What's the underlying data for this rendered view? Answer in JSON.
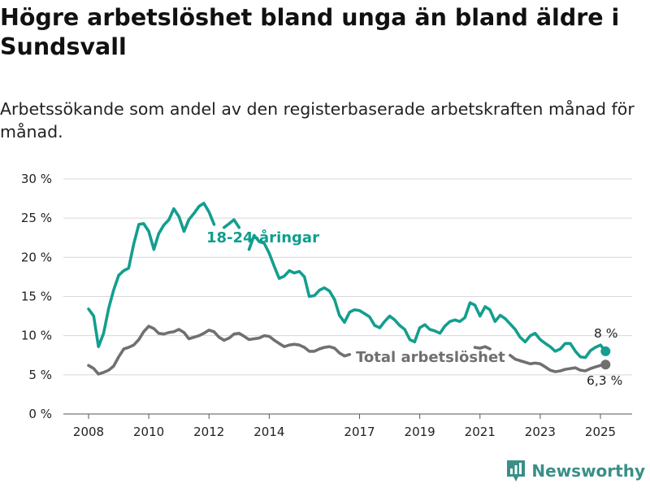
{
  "title": "Högre arbetslöshet bland unga än bland äldre i Sundsvall",
  "subtitle": "Arbetssökande som andel av den registerbaserade arbetskraften månad för månad.",
  "brand": {
    "name": "Newsworthy",
    "icon": "bar-chart-logo-icon"
  },
  "colors": {
    "youth": "#139e8f",
    "total": "#707070",
    "grid": "#d8d8d8",
    "brand": "#3a8f88"
  },
  "chart_data": {
    "type": "line",
    "title": "Högre arbetslöshet bland unga än bland äldre i Sundsvall",
    "xlabel": "",
    "ylabel": "",
    "x_ticks": [
      2008,
      2010,
      2012,
      2014,
      2017,
      2019,
      2021,
      2023,
      2025
    ],
    "y_ticks": [
      0,
      5,
      10,
      15,
      20,
      25,
      30
    ],
    "y_tick_labels": [
      "0 %",
      "5 %",
      "10 %",
      "15 %",
      "20 %",
      "25 %",
      "30 %"
    ],
    "ylim": [
      0,
      30
    ],
    "grid": true,
    "series": [
      {
        "name": "18-24-åringar",
        "color": "#139e8f",
        "end_label": "8 %",
        "points": [
          [
            2008.0,
            13.4
          ],
          [
            2008.17,
            12.5
          ],
          [
            2008.33,
            8.6
          ],
          [
            2008.5,
            10.3
          ],
          [
            2008.67,
            13.5
          ],
          [
            2008.83,
            15.8
          ],
          [
            2009.0,
            17.7
          ],
          [
            2009.17,
            18.3
          ],
          [
            2009.33,
            18.6
          ],
          [
            2009.5,
            21.7
          ],
          [
            2009.67,
            24.2
          ],
          [
            2009.83,
            24.3
          ],
          [
            2010.0,
            23.3
          ],
          [
            2010.17,
            21.0
          ],
          [
            2010.33,
            23.0
          ],
          [
            2010.5,
            24.1
          ],
          [
            2010.67,
            24.8
          ],
          [
            2010.83,
            26.2
          ],
          [
            2011.0,
            25.2
          ],
          [
            2011.17,
            23.3
          ],
          [
            2011.33,
            24.8
          ],
          [
            2011.5,
            25.6
          ],
          [
            2011.67,
            26.5
          ],
          [
            2011.83,
            26.9
          ],
          [
            2012.0,
            25.8
          ],
          [
            2012.17,
            24.2
          ],
          null,
          [
            2012.5,
            23.8
          ],
          [
            2012.67,
            24.3
          ],
          [
            2012.83,
            24.8
          ],
          [
            2013.0,
            23.8
          ],
          null,
          [
            2013.33,
            21.0
          ],
          [
            2013.5,
            22.8
          ],
          [
            2013.67,
            22.0
          ],
          [
            2013.83,
            21.8
          ],
          [
            2014.0,
            20.5
          ],
          [
            2014.17,
            18.8
          ],
          [
            2014.33,
            17.3
          ],
          [
            2014.5,
            17.6
          ],
          [
            2014.67,
            18.3
          ],
          [
            2014.83,
            18.0
          ],
          [
            2015.0,
            18.2
          ],
          [
            2015.17,
            17.5
          ],
          [
            2015.33,
            15.0
          ],
          [
            2015.5,
            15.1
          ],
          [
            2015.67,
            15.8
          ],
          [
            2015.83,
            16.1
          ],
          [
            2016.0,
            15.7
          ],
          [
            2016.17,
            14.6
          ],
          [
            2016.33,
            12.6
          ],
          [
            2016.5,
            11.7
          ],
          [
            2016.67,
            13.0
          ],
          [
            2016.83,
            13.3
          ],
          [
            2017.0,
            13.2
          ],
          [
            2017.17,
            12.8
          ],
          [
            2017.33,
            12.4
          ],
          [
            2017.5,
            11.3
          ],
          [
            2017.67,
            11.0
          ],
          [
            2017.83,
            11.8
          ],
          [
            2018.0,
            12.5
          ],
          [
            2018.17,
            12.0
          ],
          [
            2018.33,
            11.3
          ],
          [
            2018.5,
            10.8
          ],
          [
            2018.67,
            9.5
          ],
          [
            2018.83,
            9.2
          ],
          [
            2019.0,
            11.0
          ],
          [
            2019.17,
            11.4
          ],
          [
            2019.33,
            10.8
          ],
          [
            2019.5,
            10.6
          ],
          [
            2019.67,
            10.3
          ],
          [
            2019.83,
            11.2
          ],
          [
            2020.0,
            11.8
          ],
          [
            2020.17,
            12.0
          ],
          [
            2020.33,
            11.8
          ],
          [
            2020.5,
            12.3
          ],
          [
            2020.67,
            14.2
          ],
          [
            2020.83,
            13.9
          ],
          [
            2021.0,
            12.5
          ],
          [
            2021.17,
            13.7
          ],
          [
            2021.33,
            13.3
          ],
          [
            2021.5,
            11.8
          ],
          [
            2021.67,
            12.6
          ],
          [
            2021.83,
            12.2
          ],
          [
            2022.0,
            11.5
          ],
          [
            2022.17,
            10.8
          ],
          [
            2022.33,
            9.8
          ],
          [
            2022.5,
            9.2
          ],
          [
            2022.67,
            10.0
          ],
          [
            2022.83,
            10.3
          ],
          [
            2023.0,
            9.5
          ],
          [
            2023.17,
            9.0
          ],
          [
            2023.33,
            8.6
          ],
          [
            2023.5,
            8.0
          ],
          [
            2023.67,
            8.3
          ],
          [
            2023.83,
            9.0
          ],
          [
            2024.0,
            9.0
          ],
          [
            2024.17,
            8.0
          ],
          [
            2024.33,
            7.3
          ],
          [
            2024.5,
            7.2
          ],
          [
            2024.67,
            8.1
          ],
          [
            2024.83,
            8.5
          ],
          [
            2025.0,
            8.8
          ],
          [
            2025.17,
            8.0
          ]
        ]
      },
      {
        "name": "Total arbetslöshet",
        "color": "#707070",
        "end_label": "6,3 %",
        "points": [
          [
            2008.0,
            6.2
          ],
          [
            2008.17,
            5.8
          ],
          [
            2008.33,
            5.1
          ],
          [
            2008.5,
            5.3
          ],
          [
            2008.67,
            5.6
          ],
          [
            2008.83,
            6.1
          ],
          [
            2009.0,
            7.3
          ],
          [
            2009.17,
            8.3
          ],
          [
            2009.33,
            8.5
          ],
          [
            2009.5,
            8.8
          ],
          [
            2009.67,
            9.5
          ],
          [
            2009.83,
            10.5
          ],
          [
            2010.0,
            11.2
          ],
          [
            2010.17,
            10.9
          ],
          [
            2010.33,
            10.3
          ],
          [
            2010.5,
            10.2
          ],
          [
            2010.67,
            10.4
          ],
          [
            2010.83,
            10.5
          ],
          [
            2011.0,
            10.8
          ],
          [
            2011.17,
            10.4
          ],
          [
            2011.33,
            9.6
          ],
          [
            2011.5,
            9.8
          ],
          [
            2011.67,
            10.0
          ],
          [
            2011.83,
            10.3
          ],
          [
            2012.0,
            10.7
          ],
          [
            2012.17,
            10.5
          ],
          [
            2012.33,
            9.8
          ],
          [
            2012.5,
            9.4
          ],
          [
            2012.67,
            9.7
          ],
          [
            2012.83,
            10.2
          ],
          [
            2013.0,
            10.3
          ],
          [
            2013.17,
            9.9
          ],
          [
            2013.33,
            9.5
          ],
          [
            2013.5,
            9.6
          ],
          [
            2013.67,
            9.7
          ],
          [
            2013.83,
            10.0
          ],
          [
            2014.0,
            9.9
          ],
          [
            2014.17,
            9.4
          ],
          [
            2014.33,
            9.0
          ],
          [
            2014.5,
            8.6
          ],
          [
            2014.67,
            8.8
          ],
          [
            2014.83,
            8.9
          ],
          [
            2015.0,
            8.8
          ],
          [
            2015.17,
            8.5
          ],
          [
            2015.33,
            8.0
          ],
          [
            2015.5,
            8.0
          ],
          [
            2015.67,
            8.3
          ],
          [
            2015.83,
            8.5
          ],
          [
            2016.0,
            8.6
          ],
          [
            2016.17,
            8.4
          ],
          [
            2016.33,
            7.8
          ],
          [
            2016.5,
            7.4
          ],
          [
            2016.67,
            7.6
          ],
          null,
          [
            2020.83,
            8.5
          ],
          [
            2021.0,
            8.4
          ],
          [
            2021.17,
            8.6
          ],
          [
            2021.33,
            8.3
          ],
          null,
          [
            2022.0,
            7.5
          ],
          [
            2022.17,
            7.0
          ],
          [
            2022.33,
            6.8
          ],
          [
            2022.5,
            6.6
          ],
          [
            2022.67,
            6.4
          ],
          [
            2022.83,
            6.5
          ],
          [
            2023.0,
            6.4
          ],
          [
            2023.17,
            6.0
          ],
          [
            2023.33,
            5.6
          ],
          [
            2023.5,
            5.4
          ],
          [
            2023.67,
            5.5
          ],
          [
            2023.83,
            5.7
          ],
          [
            2024.0,
            5.8
          ],
          [
            2024.17,
            5.9
          ],
          [
            2024.33,
            5.6
          ],
          [
            2024.5,
            5.5
          ],
          [
            2024.67,
            5.8
          ],
          [
            2024.83,
            6.0
          ],
          [
            2025.0,
            6.2
          ],
          [
            2025.17,
            6.3
          ]
        ]
      }
    ]
  }
}
